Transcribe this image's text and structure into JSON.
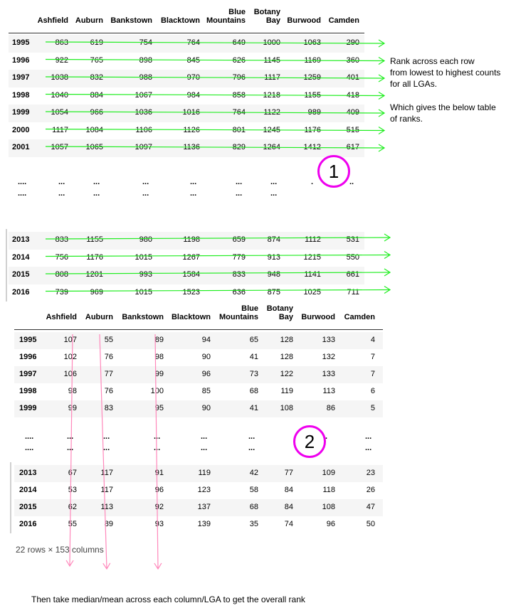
{
  "table1": {
    "columns": [
      "Ashfield",
      "Auburn",
      "Bankstown",
      "Blacktown",
      "Blue\nMountains",
      "Botany\nBay",
      "Burwood",
      "Camden"
    ],
    "rows_top": [
      {
        "year": "1995",
        "values": [
          "863",
          "619",
          "754",
          "764",
          "649",
          "1000",
          "1063",
          "290"
        ]
      },
      {
        "year": "1996",
        "values": [
          "922",
          "765",
          "898",
          "845",
          "626",
          "1145",
          "1169",
          "360"
        ]
      },
      {
        "year": "1997",
        "values": [
          "1038",
          "832",
          "988",
          "970",
          "796",
          "1117",
          "1259",
          "401"
        ]
      },
      {
        "year": "1998",
        "values": [
          "1040",
          "884",
          "1067",
          "984",
          "858",
          "1218",
          "1155",
          "418"
        ]
      },
      {
        "year": "1999",
        "values": [
          "1054",
          "966",
          "1036",
          "1016",
          "764",
          "1122",
          "989",
          "409"
        ]
      },
      {
        "year": "2000",
        "values": [
          "1117",
          "1084",
          "1106",
          "1126",
          "801",
          "1245",
          "1176",
          "515"
        ]
      },
      {
        "year": "2001",
        "values": [
          "1057",
          "1065",
          "1097",
          "1136",
          "829",
          "1264",
          "1412",
          "617"
        ]
      }
    ],
    "ellipsis_rows": [
      [
        "....",
        "...",
        "...",
        "...",
        "...",
        "...",
        "...",
        ".",
        ".."
      ],
      [
        "....",
        "...",
        "...",
        "...",
        "...",
        "...",
        "...",
        "",
        ""
      ]
    ],
    "rows_bottom": [
      {
        "year": "2013",
        "values": [
          "833",
          "1155",
          "980",
          "1198",
          "659",
          "874",
          "1112",
          "531"
        ]
      },
      {
        "year": "2014",
        "values": [
          "756",
          "1176",
          "1015",
          "1267",
          "779",
          "913",
          "1215",
          "550"
        ]
      },
      {
        "year": "2015",
        "values": [
          "808",
          "1201",
          "993",
          "1584",
          "833",
          "948",
          "1141",
          "661"
        ]
      },
      {
        "year": "2016",
        "values": [
          "739",
          "969",
          "1015",
          "1523",
          "636",
          "875",
          "1025",
          "711"
        ]
      }
    ]
  },
  "notes": {
    "rank_instruction": "Rank across each row\nfrom lowest to highest counts\nfor all LGAs.",
    "table_intro": "Which gives the below table\nof ranks."
  },
  "markers": {
    "step1": "1",
    "step2": "2",
    "marker_color": "#ee00ee",
    "row_arrow_color": "#22ee22",
    "column_arrow_color": "#ff88bb"
  },
  "table2": {
    "columns": [
      "Ashfield",
      "Auburn",
      "Bankstown",
      "Blacktown",
      "Blue\nMountains",
      "Botany\nBay",
      "Burwood",
      "Camden"
    ],
    "rows_top": [
      {
        "year": "1995",
        "values": [
          "107",
          "55",
          "89",
          "94",
          "65",
          "128",
          "133",
          "4"
        ]
      },
      {
        "year": "1996",
        "values": [
          "102",
          "76",
          "98",
          "90",
          "41",
          "128",
          "132",
          "7"
        ]
      },
      {
        "year": "1997",
        "values": [
          "106",
          "77",
          "99",
          "96",
          "73",
          "122",
          "133",
          "7"
        ]
      },
      {
        "year": "1998",
        "values": [
          "98",
          "76",
          "100",
          "85",
          "68",
          "119",
          "113",
          "6"
        ]
      },
      {
        "year": "1999",
        "values": [
          "99",
          "83",
          "95",
          "90",
          "41",
          "108",
          "86",
          "5"
        ]
      }
    ],
    "ellipsis_rows": [
      [
        "....",
        "...",
        "...",
        "...",
        "...",
        "...",
        "",
        ".",
        "..."
      ],
      [
        "....",
        "...",
        "...",
        "...",
        "...",
        "...",
        "",
        "",
        "..."
      ]
    ],
    "rows_bottom": [
      {
        "year": "2013",
        "values": [
          "67",
          "117",
          "91",
          "119",
          "42",
          "77",
          "109",
          "23"
        ]
      },
      {
        "year": "2014",
        "values": [
          "53",
          "117",
          "96",
          "123",
          "58",
          "84",
          "118",
          "26"
        ]
      },
      {
        "year": "2015",
        "values": [
          "62",
          "113",
          "92",
          "137",
          "68",
          "84",
          "108",
          "47"
        ]
      },
      {
        "year": "2016",
        "values": [
          "55",
          "89",
          "93",
          "139",
          "35",
          "74",
          "96",
          "50"
        ]
      }
    ],
    "shape_caption": "22 rows × 153 columns"
  },
  "footer_note": "Then take median/mean across each column/LGA to get the overall rank"
}
